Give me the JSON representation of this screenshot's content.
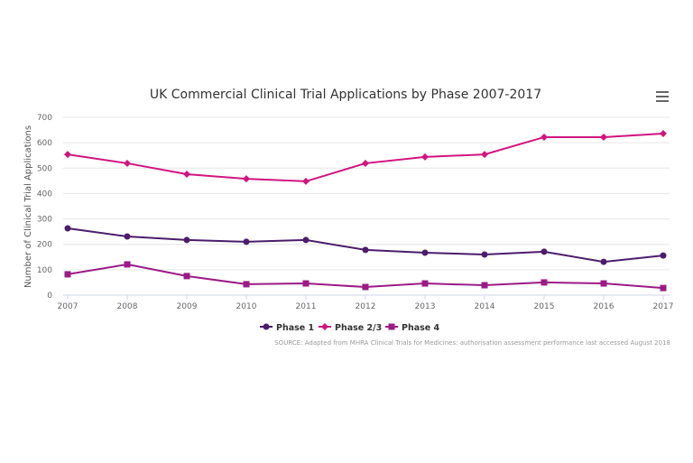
{
  "chart_data": {
    "type": "line",
    "title": "UK Commercial Clinical Trial Applications by Phase 2007-2017",
    "xlabel": "",
    "ylabel": "Number of Clinical Trial Applications",
    "x": [
      "2007",
      "2008",
      "2009",
      "2010",
      "2011",
      "2012",
      "2013",
      "2014",
      "2015",
      "2016",
      "2017"
    ],
    "ylim": [
      0,
      700
    ],
    "yticks": [
      0,
      100,
      200,
      300,
      400,
      500,
      600,
      700
    ],
    "grid": true,
    "legend": "bottom-center",
    "series": [
      {
        "name": "Phase 1",
        "color": "#4b1d6b",
        "marker": "circle",
        "values": [
          263,
          231,
          217,
          210,
          217,
          178,
          167,
          160,
          171,
          131,
          156
        ]
      },
      {
        "name": "Phase 2/3",
        "color": "#d0157f",
        "marker": "diamond",
        "values": [
          554,
          519,
          476,
          458,
          448,
          519,
          544,
          554,
          622,
          622,
          636
        ]
      },
      {
        "name": "Phase 4",
        "color": "#9b1b86",
        "marker": "square",
        "values": [
          82,
          121,
          75,
          43,
          46,
          32,
          46,
          39,
          50,
          46,
          28
        ]
      }
    ],
    "source": "SOURCE: Adapted from MHRA Clinical Trials for Medicines: authorisation assessment performance last accessed August 2018"
  },
  "menu_icon": "hamburger-menu-icon"
}
